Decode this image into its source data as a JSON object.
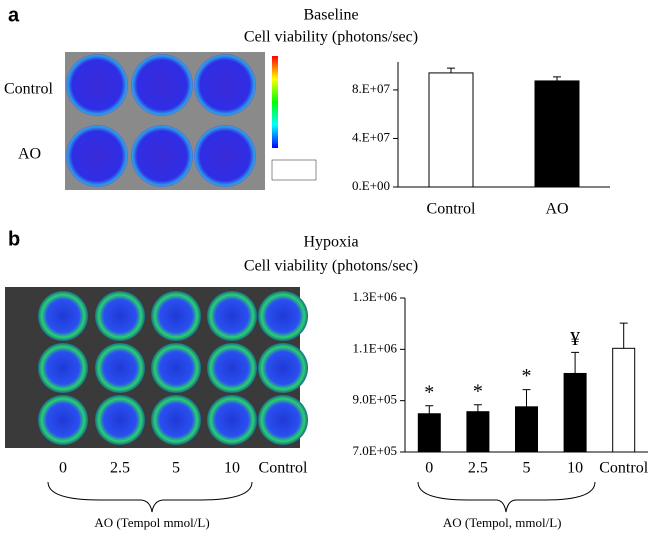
{
  "figure": {
    "panels": [
      {
        "label": "a",
        "plate_row_labels": [
          "Control",
          "AO"
        ]
      },
      {
        "label": "b",
        "plate_column_labels": [
          "0",
          "2.5",
          "5",
          "10",
          "Control"
        ],
        "plate_caption": "AO (Tempol mmol/L)"
      }
    ]
  },
  "chart_data": [
    {
      "type": "bar",
      "title": "Baseline",
      "subtitle": "Cell viability (photons/sec)",
      "categories": [
        "Control",
        "AO"
      ],
      "values": [
        94000000,
        87400000
      ],
      "errors": [
        4000000,
        3300000
      ],
      "colors": [
        "#ffffff",
        "#000000"
      ],
      "ylim": [
        0,
        103000000
      ],
      "yticks": [
        {
          "value": 0,
          "label": "0.E+00"
        },
        {
          "value": 40000000,
          "label": "4.E+07"
        },
        {
          "value": 80000000,
          "label": "8.E+07"
        }
      ]
    },
    {
      "type": "bar",
      "title": "Hypoxia",
      "subtitle": "Cell viability (photons/sec)",
      "categories": [
        "0",
        "2.5",
        "5",
        "10",
        "Control"
      ],
      "values": [
        849000,
        857000,
        876000,
        1006000,
        1104000
      ],
      "errors": [
        31000,
        27000,
        67000,
        82000,
        98000
      ],
      "colors": [
        "#000000",
        "#000000",
        "#000000",
        "#000000",
        "#ffffff"
      ],
      "annotations": [
        "*",
        "*",
        "*",
        "¥",
        null
      ],
      "xlabel": "AO (Tempol, mmol/L)",
      "ylim": [
        700000,
        1300000
      ],
      "yticks": [
        {
          "value": 700000,
          "label": "7.0E+05"
        },
        {
          "value": 900000,
          "label": "9.0E+05"
        },
        {
          "value": 1100000,
          "label": "1.1E+06"
        },
        {
          "value": 1300000,
          "label": "1.3E+06"
        }
      ]
    }
  ]
}
